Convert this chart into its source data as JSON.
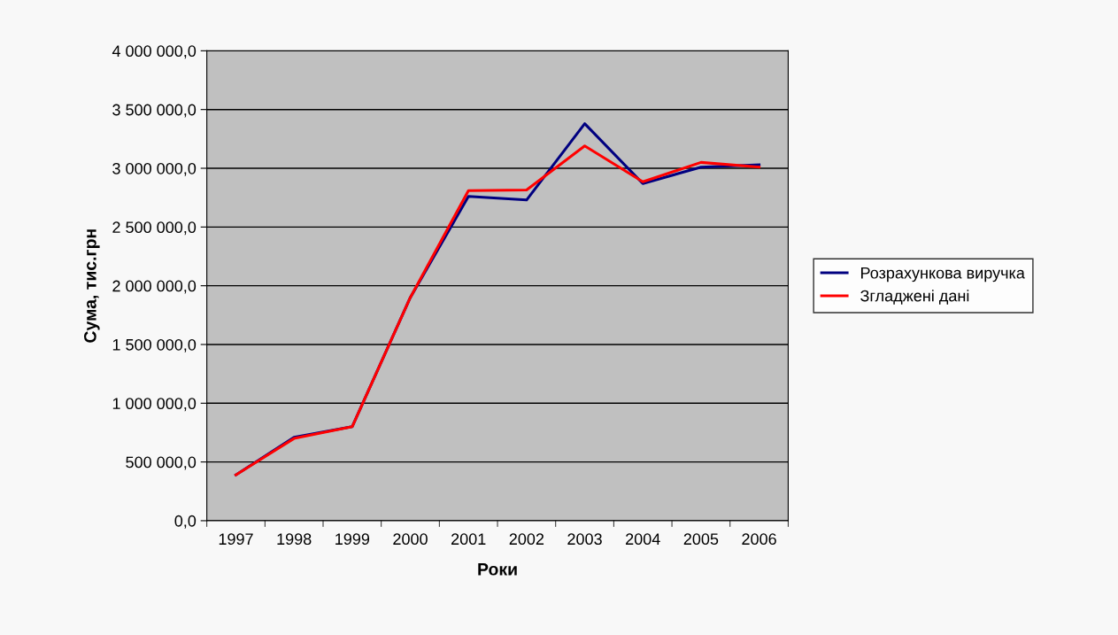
{
  "chart_data": {
    "type": "line",
    "xlabel": "Роки",
    "ylabel": "Сума, тис.грн",
    "categories": [
      "1997",
      "1998",
      "1999",
      "2000",
      "2001",
      "2002",
      "2003",
      "2004",
      "2005",
      "2006"
    ],
    "series": [
      {
        "name": "Розрахункова виручка",
        "color": "#000080",
        "values": [
          390000,
          710000,
          800000,
          1900000,
          2760000,
          2730000,
          3380000,
          2870000,
          3010000,
          3030000
        ]
      },
      {
        "name": "Згладжені дані",
        "color": "#ff0000",
        "values": [
          390000,
          700000,
          800000,
          1900000,
          2810000,
          2815000,
          3190000,
          2885000,
          3050000,
          3010000
        ]
      }
    ],
    "ylim": [
      0,
      4000000
    ],
    "yticks": [
      {
        "value": 0,
        "label": "0,0"
      },
      {
        "value": 500000,
        "label": "500 000,0"
      },
      {
        "value": 1000000,
        "label": "1 000 000,0"
      },
      {
        "value": 1500000,
        "label": "1 500 000,0"
      },
      {
        "value": 2000000,
        "label": "2 000 000,0"
      },
      {
        "value": 2500000,
        "label": "2 500 000,0"
      },
      {
        "value": 3000000,
        "label": "3 000 000,0"
      },
      {
        "value": 3500000,
        "label": "3 500 000,0"
      },
      {
        "value": 4000000,
        "label": "4 000 000,0"
      }
    ],
    "grid": "y",
    "legend": "right",
    "marker": "none",
    "line_style": "solid"
  }
}
